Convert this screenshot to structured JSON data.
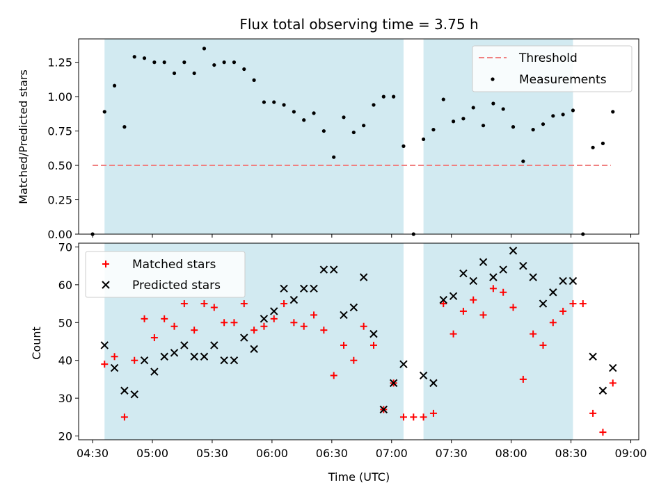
{
  "chart_data": [
    {
      "type": "scatter",
      "title": "Flux total observing time = 3.75 h",
      "xlabel": "",
      "ylabel": "Matched/Predicted stars",
      "ylim": [
        0,
        1.42
      ],
      "yticks": [
        "0.00",
        "0.25",
        "0.50",
        "0.75",
        "1.00",
        "1.25"
      ],
      "legend_position": "upper-right",
      "threshold": {
        "name": "Threshold",
        "value": 0.5,
        "x_start": "04:30",
        "x_end": "08:50",
        "color": "#f08080"
      },
      "shaded_intervals": [
        [
          "04:36",
          "07:06"
        ],
        [
          "07:16",
          "08:31"
        ]
      ],
      "shade_color": "#add8e6",
      "series": [
        {
          "name": "Measurements",
          "color": "#000000",
          "x": [
            "04:30",
            "04:36",
            "04:41",
            "04:46",
            "04:51",
            "04:56",
            "05:01",
            "05:06",
            "05:11",
            "05:16",
            "05:21",
            "05:26",
            "05:31",
            "05:36",
            "05:41",
            "05:46",
            "05:51",
            "05:56",
            "06:01",
            "06:06",
            "06:11",
            "06:16",
            "06:21",
            "06:26",
            "06:31",
            "06:36",
            "06:41",
            "06:46",
            "06:51",
            "06:56",
            "07:01",
            "07:06",
            "07:11",
            "07:16",
            "07:21",
            "07:26",
            "07:31",
            "07:36",
            "07:41",
            "07:46",
            "07:51",
            "07:56",
            "08:01",
            "08:06",
            "08:11",
            "08:16",
            "08:21",
            "08:26",
            "08:31",
            "08:36",
            "08:41",
            "08:46",
            "08:51"
          ],
          "y": [
            0.0,
            0.89,
            1.08,
            0.78,
            1.29,
            1.28,
            1.25,
            1.25,
            1.17,
            1.25,
            1.17,
            1.35,
            1.23,
            1.25,
            1.25,
            1.2,
            1.12,
            0.96,
            0.96,
            0.94,
            0.89,
            0.83,
            0.88,
            0.75,
            0.56,
            0.85,
            0.74,
            0.79,
            0.94,
            1.0,
            1.0,
            0.64,
            0.0,
            0.69,
            0.76,
            0.98,
            0.82,
            0.84,
            0.92,
            0.79,
            0.95,
            0.91,
            0.78,
            0.53,
            0.76,
            0.8,
            0.86,
            0.87,
            0.9,
            0.0,
            0.63,
            0.66,
            0.89
          ]
        }
      ]
    },
    {
      "type": "scatter",
      "title": "",
      "xlabel": "Time (UTC)",
      "ylabel": "Count",
      "ylim": [
        19,
        71
      ],
      "yticks": [
        "20",
        "30",
        "40",
        "50",
        "60",
        "70"
      ],
      "xticks": [
        "04:30",
        "05:00",
        "05:30",
        "06:00",
        "06:30",
        "07:00",
        "07:30",
        "08:00",
        "08:30",
        "09:00"
      ],
      "xlim": [
        "04:23",
        "09:04"
      ],
      "legend_position": "upper-left",
      "shaded_intervals": [
        [
          "04:36",
          "07:06"
        ],
        [
          "07:16",
          "08:31"
        ]
      ],
      "shade_color": "#add8e6",
      "series": [
        {
          "name": "Matched stars",
          "color": "#ff0000",
          "marker": "plus",
          "x": [
            "04:36",
            "04:41",
            "04:46",
            "04:51",
            "04:56",
            "05:01",
            "05:06",
            "05:11",
            "05:16",
            "05:21",
            "05:26",
            "05:31",
            "05:36",
            "05:41",
            "05:46",
            "05:51",
            "05:56",
            "06:01",
            "06:06",
            "06:11",
            "06:16",
            "06:21",
            "06:26",
            "06:31",
            "06:36",
            "06:41",
            "06:46",
            "06:51",
            "06:56",
            "07:01",
            "07:06",
            "07:11",
            "07:16",
            "07:21",
            "07:26",
            "07:31",
            "07:36",
            "07:41",
            "07:46",
            "07:51",
            "07:56",
            "08:01",
            "08:06",
            "08:11",
            "08:16",
            "08:21",
            "08:26",
            "08:31",
            "08:36",
            "08:41",
            "08:46",
            "08:51"
          ],
          "y": [
            39,
            41,
            25,
            40,
            51,
            46,
            51,
            49,
            55,
            48,
            55,
            54,
            50,
            50,
            55,
            48,
            49,
            51,
            55,
            50,
            49,
            52,
            48,
            36,
            44,
            40,
            49,
            44,
            27,
            34,
            25,
            25,
            25,
            26,
            55,
            47,
            53,
            56,
            52,
            59,
            58,
            54,
            35,
            47,
            44,
            50,
            53,
            55,
            55,
            26,
            21,
            34
          ]
        },
        {
          "name": "Predicted stars",
          "color": "#000000",
          "marker": "x",
          "x": [
            "04:36",
            "04:41",
            "04:46",
            "04:51",
            "04:56",
            "05:01",
            "05:06",
            "05:11",
            "05:16",
            "05:21",
            "05:26",
            "05:31",
            "05:36",
            "05:41",
            "05:46",
            "05:51",
            "05:56",
            "06:01",
            "06:06",
            "06:11",
            "06:16",
            "06:21",
            "06:26",
            "06:31",
            "06:36",
            "06:41",
            "06:46",
            "06:51",
            "06:56",
            "07:01",
            "07:06",
            "07:16",
            "07:21",
            "07:26",
            "07:31",
            "07:36",
            "07:41",
            "07:46",
            "07:51",
            "07:56",
            "08:01",
            "08:06",
            "08:11",
            "08:16",
            "08:21",
            "08:26",
            "08:31",
            "08:41",
            "08:46",
            "08:51"
          ],
          "y": [
            44,
            38,
            32,
            31,
            40,
            37,
            41,
            42,
            44,
            41,
            41,
            44,
            40,
            40,
            46,
            43,
            51,
            53,
            59,
            56,
            59,
            59,
            64,
            64,
            52,
            54,
            62,
            47,
            27,
            34,
            39,
            36,
            34,
            56,
            57,
            63,
            61,
            66,
            62,
            64,
            69,
            65,
            62,
            55,
            58,
            61,
            61,
            41,
            32,
            38
          ]
        }
      ]
    }
  ]
}
